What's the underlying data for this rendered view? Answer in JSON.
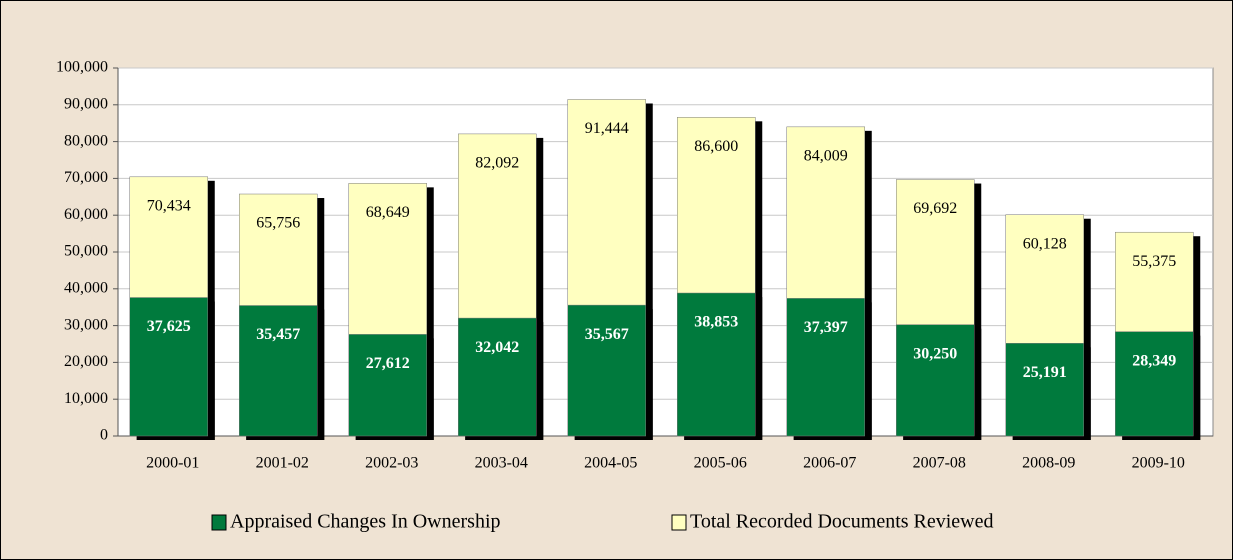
{
  "chart_data": {
    "type": "bar",
    "categories": [
      "2000-01",
      "2001-02",
      "2002-03",
      "2003-04",
      "2004-05",
      "2005-06",
      "2006-07",
      "2007-08",
      "2008-09",
      "2009-10"
    ],
    "series": [
      {
        "name": "Appraised Changes In Ownership",
        "color": "#007a3d",
        "values": [
          37625,
          35457,
          27612,
          32042,
          35567,
          38853,
          37397,
          30250,
          25191,
          28349
        ],
        "value_labels": [
          "37,625",
          "35,457",
          "27,612",
          "32,042",
          "35,567",
          "38,853",
          "37,397",
          "30,250",
          "25,191",
          "28,349"
        ]
      },
      {
        "name": "Total Recorded Documents Reviewed",
        "color": "#ffffc0",
        "values": [
          70434,
          65756,
          68649,
          82092,
          91444,
          86600,
          84009,
          69692,
          60128,
          55375
        ],
        "value_labels": [
          "70,434",
          "65,756",
          "68,649",
          "82,092",
          "91,444",
          "86,600",
          "84,009",
          "69,692",
          "60,128",
          "55,375"
        ]
      }
    ],
    "ylim": [
      0,
      100000
    ],
    "yticks": [
      0,
      {
        "value": 10000,
        "label": "10,000"
      },
      {
        "value": 20000,
        "label": "20,000"
      },
      {
        "value": 30000,
        "label": "30,000"
      },
      {
        "value": 40000,
        "label": "40,000"
      },
      {
        "value": 50000,
        "label": "50,000"
      },
      {
        "value": 60000,
        "label": "60,000"
      },
      {
        "value": 70000,
        "label": "70,000"
      },
      {
        "value": 80000,
        "label": "80,000"
      },
      {
        "value": 90000,
        "label": "90,000"
      },
      {
        "value": 100000,
        "label": "100,000"
      }
    ],
    "grid": true,
    "legend": "bottom"
  }
}
